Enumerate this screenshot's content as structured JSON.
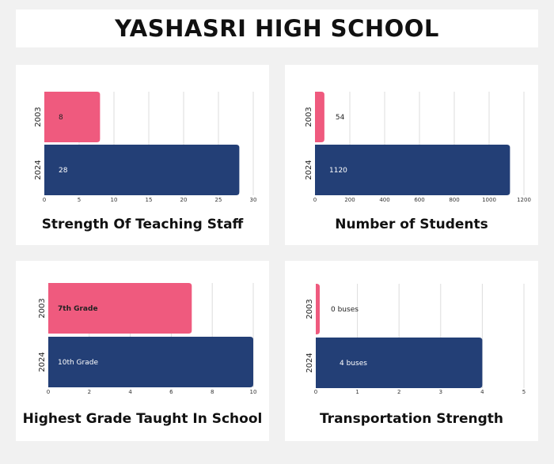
{
  "header": {
    "title": "YASHASRI HIGH SCHOOL"
  },
  "colors": {
    "bar_2003": "#ef5a7e",
    "bar_2024": "#233f76",
    "background": "#f1f1f1",
    "grid": "#dddddd"
  },
  "chart_data": [
    {
      "type": "bar",
      "orientation": "horizontal",
      "title": "Strength Of Teaching Staff",
      "categories": [
        "2003",
        "2024"
      ],
      "values": [
        8,
        28
      ],
      "data_labels": [
        "8",
        "28"
      ],
      "xlim": [
        0,
        30
      ],
      "xticks": [
        "0",
        "5",
        "10",
        "15",
        "20",
        "25",
        "30"
      ],
      "grid": true
    },
    {
      "type": "bar",
      "orientation": "horizontal",
      "title": "Number of Students",
      "categories": [
        "2003",
        "2024"
      ],
      "values": [
        54,
        1120
      ],
      "data_labels": [
        "54",
        "1120"
      ],
      "xlim": [
        0,
        1200
      ],
      "xticks": [
        "0",
        "200",
        "400",
        "600",
        "800",
        "1000",
        "1200"
      ],
      "grid": true
    },
    {
      "type": "bar",
      "orientation": "horizontal",
      "title": "Highest Grade Taught In School",
      "categories": [
        "2003",
        "2024"
      ],
      "values": [
        7,
        10
      ],
      "data_labels": [
        "7th Grade",
        "10th Grade"
      ],
      "xlim": [
        0,
        10
      ],
      "xticks": [
        "0",
        "2",
        "4",
        "6",
        "8",
        "10"
      ],
      "grid": true
    },
    {
      "type": "bar",
      "orientation": "horizontal",
      "title": "Transportation Strength",
      "categories": [
        "2003",
        "2024"
      ],
      "values": [
        0,
        4
      ],
      "data_labels": [
        "0 buses",
        "4 buses"
      ],
      "xlim": [
        0,
        5
      ],
      "xticks": [
        "0",
        "1",
        "2",
        "3",
        "4",
        "5"
      ],
      "grid": true
    }
  ]
}
